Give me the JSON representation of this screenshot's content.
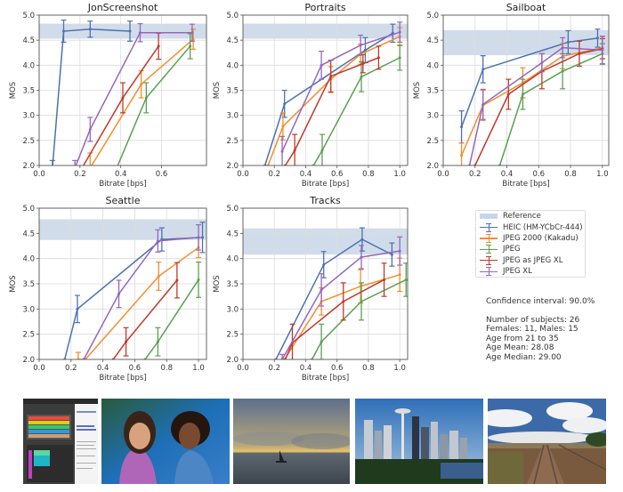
{
  "colors": {
    "reference_band": "#c9d6e8",
    "heic": "#4c72b0",
    "jpeg2000": "#f28e2b",
    "jpeg": "#59a14f",
    "jpeg_as_jxl": "#c0392b",
    "jpegxl": "#9467bd",
    "grid": "#dcdcdc",
    "axis": "#555555"
  },
  "legend": {
    "items": [
      {
        "key": "reference",
        "label": "Reference",
        "type": "band"
      },
      {
        "key": "heic",
        "label": "HEIC (HM-YCbCr-444)",
        "type": "errorbar"
      },
      {
        "key": "jpeg2000",
        "label": "JPEG 2000 (Kakadu)",
        "type": "errorbar"
      },
      {
        "key": "jpeg",
        "label": "JPEG",
        "type": "errorbar"
      },
      {
        "key": "jpeg_as_jxl",
        "label": "JPEG as JPEG XL",
        "type": "errorbar"
      },
      {
        "key": "jpegxl",
        "label": "JPEG XL",
        "type": "errorbar"
      }
    ]
  },
  "stats": {
    "confidence": "Confidence interval: 90.0%",
    "lines": [
      "Number of subjects: 26",
      "Females: 11, Males: 15",
      "Age from 21 to 35",
      "Age Mean: 28.08",
      "Age Median: 29.00"
    ]
  },
  "photos": [
    {
      "name": "JonScreenshot",
      "kind": "screenshot"
    },
    {
      "name": "Portraits",
      "kind": "portrait"
    },
    {
      "name": "Sailboat",
      "kind": "sunset-sea"
    },
    {
      "name": "Seattle",
      "kind": "city-skyline"
    },
    {
      "name": "Tracks",
      "kind": "railway"
    }
  ],
  "chart_data": [
    {
      "type": "line",
      "title": "JonScreenshot",
      "xlabel": "Bitrate [bps]",
      "ylabel": "MOS",
      "xlim": [
        0.0,
        0.82
      ],
      "ylim": [
        2.0,
        5.0
      ],
      "xticks": [
        "0.0",
        "0.2",
        "0.4",
        "0.6"
      ],
      "yticks": [
        "2.0",
        "2.5",
        "3.0",
        "3.5",
        "4.0",
        "4.5",
        "5.0"
      ],
      "grid": true,
      "reference": [
        4.53,
        4.83
      ],
      "series": [
        {
          "name": "HEIC (HM-YCbCr-444)",
          "key": "heic",
          "x": [
            0.065,
            0.12,
            0.25,
            0.445
          ],
          "y": [
            1.95,
            4.68,
            4.72,
            4.68
          ],
          "err": [
            0.15,
            0.22,
            0.16,
            0.2
          ]
        },
        {
          "name": "JPEG 2000 (Kakadu)",
          "key": "jpeg2000",
          "x": [
            0.25,
            0.5,
            0.755
          ],
          "y": [
            1.95,
            3.62,
            4.52
          ],
          "err": [
            0.3,
            0.27,
            0.2
          ]
        },
        {
          "name": "JPEG",
          "key": "jpeg",
          "x": [
            0.38,
            0.525,
            0.74
          ],
          "y": [
            1.95,
            3.35,
            4.38
          ],
          "err": [
            0.0,
            0.3,
            0.25
          ]
        },
        {
          "name": "JPEG as JPEG XL",
          "key": "jpeg_as_jxl",
          "x": [
            0.21,
            0.41,
            0.585
          ],
          "y": [
            1.95,
            3.35,
            4.38
          ],
          "err": [
            0.0,
            0.3,
            0.26
          ]
        },
        {
          "name": "JPEG XL",
          "key": "jpegxl",
          "x": [
            0.175,
            0.25,
            0.495,
            0.75
          ],
          "y": [
            1.95,
            2.72,
            4.65,
            4.65
          ],
          "err": [
            0.15,
            0.24,
            0.18,
            0.17
          ]
        }
      ]
    },
    {
      "type": "line",
      "title": "Portraits",
      "xlabel": "Bitrate [bps]",
      "ylabel": "MOS",
      "xlim": [
        0.0,
        1.05
      ],
      "ylim": [
        2.0,
        5.0
      ],
      "xticks": [
        "0.0",
        "0.2",
        "0.4",
        "0.6",
        "0.8",
        "1.0"
      ],
      "yticks": [
        "2.0",
        "2.5",
        "3.0",
        "3.5",
        "4.0",
        "4.5",
        "5.0"
      ],
      "grid": true,
      "reference": [
        4.53,
        4.83
      ],
      "series": [
        {
          "name": "HEIC (HM-YCbCr-444)",
          "key": "heic",
          "x": [
            0.14,
            0.265,
            0.78,
            0.955
          ],
          "y": [
            2.0,
            3.23,
            4.3,
            4.64
          ],
          "err": [
            0,
            0.27,
            0.25,
            0.18
          ]
        },
        {
          "name": "JPEG 2000 (Kakadu)",
          "key": "jpeg2000",
          "x": [
            0.16,
            0.255,
            0.56,
            0.75,
            1.0
          ],
          "y": [
            2.0,
            2.78,
            3.72,
            4.22,
            4.57
          ],
          "err": [
            0,
            0.27,
            0.25,
            0.2,
            0.18
          ]
        },
        {
          "name": "JPEG",
          "key": "jpeg",
          "x": [
            0.45,
            0.505,
            0.755,
            1.0
          ],
          "y": [
            2.0,
            2.3,
            3.77,
            4.15
          ],
          "err": [
            0,
            0.32,
            0.3,
            0.25
          ]
        },
        {
          "name": "JPEG as JPEG XL",
          "key": "jpeg_as_jxl",
          "x": [
            0.27,
            0.33,
            0.56,
            0.765,
            0.865
          ],
          "y": [
            2.0,
            2.3,
            3.78,
            4.03,
            4.15
          ],
          "err": [
            0,
            0.32,
            0.32,
            0.18,
            0.23
          ]
        },
        {
          "name": "JPEG XL",
          "key": "jpegxl",
          "x": [
            0.25,
            0.5,
            0.75,
            1.0
          ],
          "y": [
            2.28,
            4.0,
            4.4,
            4.66
          ],
          "err": [
            0.3,
            0.28,
            0.2,
            0.2
          ]
        }
      ]
    },
    {
      "type": "line",
      "title": "Sailboat",
      "xlabel": "Bitrate [bps]",
      "ylabel": "MOS",
      "xlim": [
        0.0,
        1.04
      ],
      "ylim": [
        2.0,
        5.0
      ],
      "xticks": [
        "0.0",
        "0.2",
        "0.4",
        "0.6",
        "0.8",
        "1.0"
      ],
      "yticks": [
        "2.0",
        "2.5",
        "3.0",
        "3.5",
        "4.0",
        "4.5",
        "5.0"
      ],
      "grid": true,
      "reference": [
        4.2,
        4.7
      ],
      "series": [
        {
          "name": "HEIC (HM-YCbCr-444)",
          "key": "heic",
          "x": [
            0.115,
            0.25,
            0.785,
            0.97
          ],
          "y": [
            2.77,
            3.92,
            4.46,
            4.54
          ],
          "err": [
            0.32,
            0.27,
            0.23,
            0.18
          ]
        },
        {
          "name": "JPEG 2000 (Kakadu)",
          "key": "jpeg2000",
          "x": [
            0.115,
            0.25,
            0.5,
            0.75,
            1.0
          ],
          "y": [
            2.2,
            3.2,
            3.65,
            4.18,
            4.35
          ],
          "err": [
            0.25,
            0.3,
            0.3,
            0.25,
            0.22
          ]
        },
        {
          "name": "JPEG",
          "key": "jpeg",
          "x": [
            0.355,
            0.5,
            0.75,
            1.0
          ],
          "y": [
            2.0,
            3.42,
            3.88,
            4.23
          ],
          "err": [
            0,
            0.3,
            0.35,
            0.2
          ]
        },
        {
          "name": "JPEG as JPEG XL",
          "key": "jpeg_as_jxl",
          "x": [
            0.2,
            0.41,
            0.62,
            0.855,
            1.0
          ],
          "y": [
            2.0,
            3.42,
            3.88,
            4.23,
            4.33
          ],
          "err": [
            0,
            0.3,
            0.35,
            0.25,
            0.2
          ]
        },
        {
          "name": "JPEG XL",
          "key": "jpegxl",
          "x": [
            0.165,
            0.25,
            0.62,
            0.75,
            1.0
          ],
          "y": [
            2.0,
            3.22,
            4.05,
            4.35,
            4.3
          ],
          "err": [
            0,
            0.3,
            0.18,
            0.2,
            0.28
          ]
        }
      ]
    },
    {
      "type": "line",
      "title": "Seattle",
      "xlabel": "Bitrate [bps]",
      "ylabel": "MOS",
      "xlim": [
        0.0,
        1.05
      ],
      "ylim": [
        2.0,
        5.0
      ],
      "xticks": [
        "0.0",
        "0.2",
        "0.4",
        "0.6",
        "0.8",
        "1.0"
      ],
      "yticks": [
        "2.0",
        "2.5",
        "3.0",
        "3.5",
        "4.0",
        "4.5",
        "5.0"
      ],
      "grid": true,
      "reference": [
        4.37,
        4.78
      ],
      "series": [
        {
          "name": "HEIC (HM-YCbCr-444)",
          "key": "heic",
          "x": [
            0.16,
            0.24,
            0.77,
            1.025
          ],
          "y": [
            2.0,
            3.0,
            4.38,
            4.42
          ],
          "err": [
            0,
            0.27,
            0.23,
            0.3
          ]
        },
        {
          "name": "JPEG 2000 (Kakadu)",
          "key": "jpeg2000",
          "x": [
            0.245,
            0.29,
            0.75,
            1.0
          ],
          "y": [
            2.0,
            2.0,
            3.65,
            4.22
          ],
          "err": [
            0.14,
            0,
            0.28,
            0.2
          ]
        },
        {
          "name": "JPEG",
          "key": "jpeg",
          "x": [
            0.665,
            0.745,
            1.0
          ],
          "y": [
            2.0,
            2.35,
            3.58
          ],
          "err": [
            0,
            0.28,
            0.35
          ]
        },
        {
          "name": "JPEG as JPEG XL",
          "key": "jpeg_as_jxl",
          "x": [
            0.465,
            0.545,
            0.865
          ],
          "y": [
            2.0,
            2.35,
            3.57
          ],
          "err": [
            0,
            0.28,
            0.35
          ]
        },
        {
          "name": "JPEG XL",
          "key": "jpegxl",
          "x": [
            0.28,
            0.5,
            0.745,
            1.0
          ],
          "y": [
            2.0,
            3.3,
            4.35,
            4.42
          ],
          "err": [
            0,
            0.27,
            0.22,
            0.25
          ]
        }
      ]
    },
    {
      "type": "line",
      "title": "Tracks",
      "xlabel": "Bitrate [bps]",
      "ylabel": "MOS",
      "xlim": [
        0.0,
        1.05
      ],
      "ylim": [
        2.0,
        5.0
      ],
      "xticks": [
        "0.0",
        "0.2",
        "0.4",
        "0.6",
        "0.8",
        "1.0"
      ],
      "yticks": [
        "2.0",
        "2.5",
        "3.0",
        "3.5",
        "4.0",
        "4.5",
        "5.0"
      ],
      "grid": true,
      "reference": [
        4.08,
        4.6
      ],
      "series": [
        {
          "name": "HEIC (HM-YCbCr-444)",
          "key": "heic",
          "x": [
            0.21,
            0.515,
            0.76,
            0.95
          ],
          "y": [
            2.0,
            3.88,
            4.38,
            4.08
          ],
          "err": [
            0,
            0.26,
            0.23,
            0.23
          ]
        },
        {
          "name": "JPEG 2000 (Kakadu)",
          "key": "jpeg2000",
          "x": [
            0.265,
            0.5,
            0.75,
            1.0
          ],
          "y": [
            2.0,
            3.15,
            3.45,
            3.68
          ],
          "err": [
            0,
            0.27,
            0.33,
            0.33
          ]
        },
        {
          "name": "JPEG",
          "key": "jpeg",
          "x": [
            0.44,
            0.5,
            0.755,
            1.04
          ],
          "y": [
            2.0,
            2.35,
            3.15,
            3.58
          ],
          "err": [
            0,
            0.35,
            0.37,
            0.33
          ]
        },
        {
          "name": "JPEG as JPEG XL",
          "key": "jpeg_as_jxl",
          "x": [
            0.27,
            0.315,
            0.64,
            0.9
          ],
          "y": [
            2.0,
            2.33,
            3.15,
            3.58
          ],
          "err": [
            0,
            0.37,
            0.37,
            0.33
          ]
        },
        {
          "name": "JPEG XL",
          "key": "jpegxl",
          "x": [
            0.25,
            0.5,
            0.755,
            1.0
          ],
          "y": [
            2.0,
            3.38,
            4.03,
            4.15
          ],
          "err": [
            0.1,
            0.32,
            0.23,
            0.28
          ]
        }
      ]
    }
  ]
}
